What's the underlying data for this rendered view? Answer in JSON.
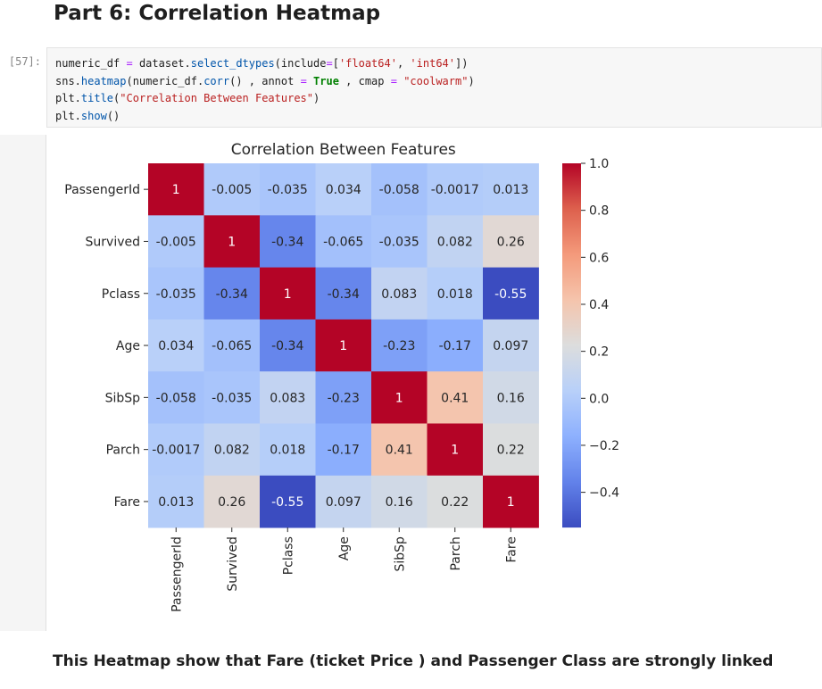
{
  "notebook": {
    "heading": "Part 6: Correlation Heatmap",
    "cell_prompt": "[57]:",
    "code_lines": [
      "numeric_df = dataset.select_dtypes(include=['float64', 'int64'])",
      "sns.heatmap(numeric_df.corr() , annot = True , cmap = \"coolwarm\")",
      "plt.title(\"Correlation Between Features\")",
      "plt.show()"
    ],
    "conclusion": "This Heatmap show that Fare (ticket Price ) and Passenger Class are strongly linked"
  },
  "chart_data": {
    "type": "heatmap",
    "title": "Correlation Between Features",
    "rows": [
      "PassengerId",
      "Survived",
      "Pclass",
      "Age",
      "SibSp",
      "Parch",
      "Fare"
    ],
    "columns": [
      "PassengerId",
      "Survived",
      "Pclass",
      "Age",
      "SibSp",
      "Parch",
      "Fare"
    ],
    "values": [
      [
        1,
        -0.005,
        -0.035,
        0.034,
        -0.058,
        -0.0017,
        0.013
      ],
      [
        -0.005,
        1,
        -0.34,
        -0.065,
        -0.035,
        0.082,
        0.26
      ],
      [
        -0.035,
        -0.34,
        1,
        -0.34,
        0.083,
        0.018,
        -0.55
      ],
      [
        0.034,
        -0.065,
        -0.34,
        1,
        -0.23,
        -0.17,
        0.097
      ],
      [
        -0.058,
        -0.035,
        0.083,
        -0.23,
        1,
        0.41,
        0.16
      ],
      [
        -0.0017,
        0.082,
        0.018,
        -0.17,
        0.41,
        1,
        0.22
      ],
      [
        0.013,
        0.26,
        -0.55,
        0.097,
        0.16,
        0.22,
        1
      ]
    ],
    "annotations": [
      [
        "1",
        "-0.005",
        "-0.035",
        "0.034",
        "-0.058",
        "-0.0017",
        "0.013"
      ],
      [
        "-0.005",
        "1",
        "-0.34",
        "-0.065",
        "-0.035",
        "0.082",
        "0.26"
      ],
      [
        "-0.035",
        "-0.34",
        "1",
        "-0.34",
        "0.083",
        "0.018",
        "-0.55"
      ],
      [
        "0.034",
        "-0.065",
        "-0.34",
        "1",
        "-0.23",
        "-0.17",
        "0.097"
      ],
      [
        "-0.058",
        "-0.035",
        "0.083",
        "-0.23",
        "1",
        "0.41",
        "0.16"
      ],
      [
        "-0.0017",
        "0.082",
        "0.018",
        "-0.17",
        "0.41",
        "1",
        "0.22"
      ],
      [
        "0.013",
        "0.26",
        "-0.55",
        "0.097",
        "0.16",
        "0.22",
        "1"
      ]
    ],
    "colormap": "coolwarm",
    "vmin": -0.55,
    "vmax": 1.0,
    "colorbar_ticks": [
      1.0,
      0.8,
      0.6,
      0.4,
      0.2,
      0.0,
      -0.2,
      -0.4
    ],
    "colorbar_tick_labels": [
      "1.0",
      "0.8",
      "0.6",
      "0.4",
      "0.2",
      "0.0",
      "−0.2",
      "−0.4"
    ],
    "colormap_anchors": [
      "#3b4cc0",
      "#6282ea",
      "#8db0fe",
      "#b8d0f9",
      "#dcdddd",
      "#f5c4ac",
      "#f49a7b",
      "#dd604d",
      "#b40426"
    ]
  }
}
